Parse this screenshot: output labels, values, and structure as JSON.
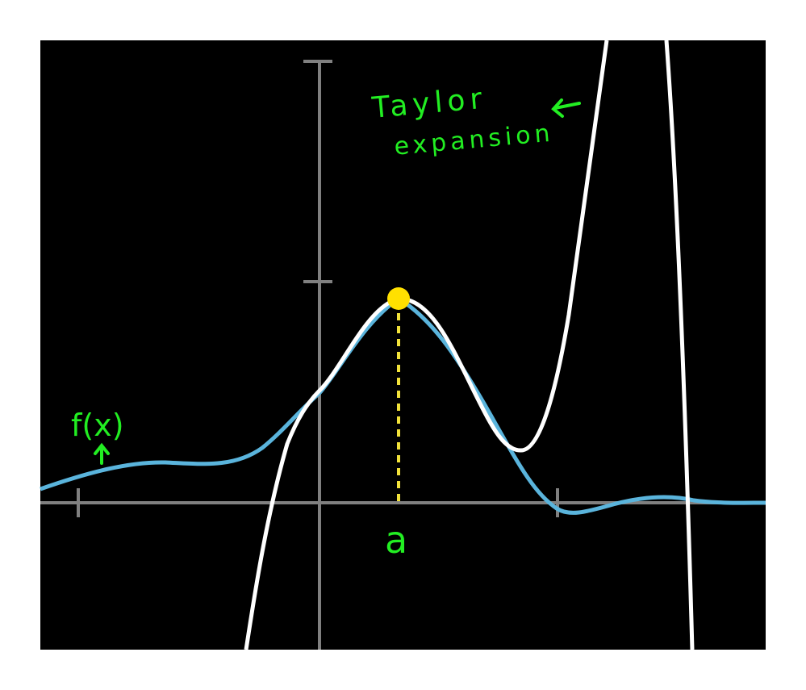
{
  "colors": {
    "background": "#000000",
    "axis": "#808080",
    "f_curve": "#5ab4dc",
    "taylor_curve": "#ffffff",
    "point": "#ffe000",
    "dashed": "#f2e23a",
    "annotation": "#22ee22"
  },
  "annotations": {
    "taylor_line1": "Taylor",
    "taylor_line2": "expansion",
    "f_label": "f(x)",
    "a_label": "a"
  },
  "icons": {
    "taylor_arrow": "arrow-left-icon",
    "f_arrow": "arrow-up-icon"
  }
}
